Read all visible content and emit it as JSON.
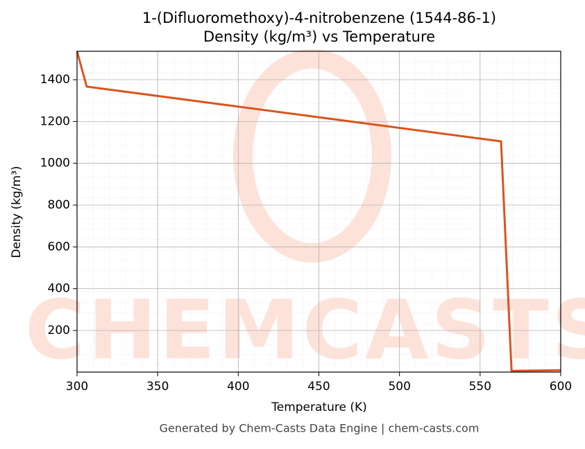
{
  "chart_data": {
    "type": "line",
    "title": "1-(Difluoromethoxy)-4-nitrobenzene (1544-86-1)",
    "subtitle": "Density (kg/m³) vs Temperature",
    "x_label": "Temperature (K)",
    "y_label": "Density (kg/m³)",
    "footer": "Generated by Chem-Casts Data Engine | chem-casts.com",
    "watermark": "CHEMCASTS",
    "x": [
      300,
      306,
      563,
      569.5,
      600
    ],
    "series": [
      {
        "name": "Density",
        "color": "#d9541e",
        "values": [
          1536,
          1367,
          1105,
          7,
          10
        ]
      }
    ],
    "xlim": [
      300,
      600
    ],
    "xticks": [
      300,
      350,
      400,
      450,
      500,
      550,
      600
    ],
    "ylim": [
      1,
      1536
    ],
    "yticks": [
      200,
      400,
      600,
      800,
      1000,
      1200,
      1400
    ],
    "grid": true
  }
}
